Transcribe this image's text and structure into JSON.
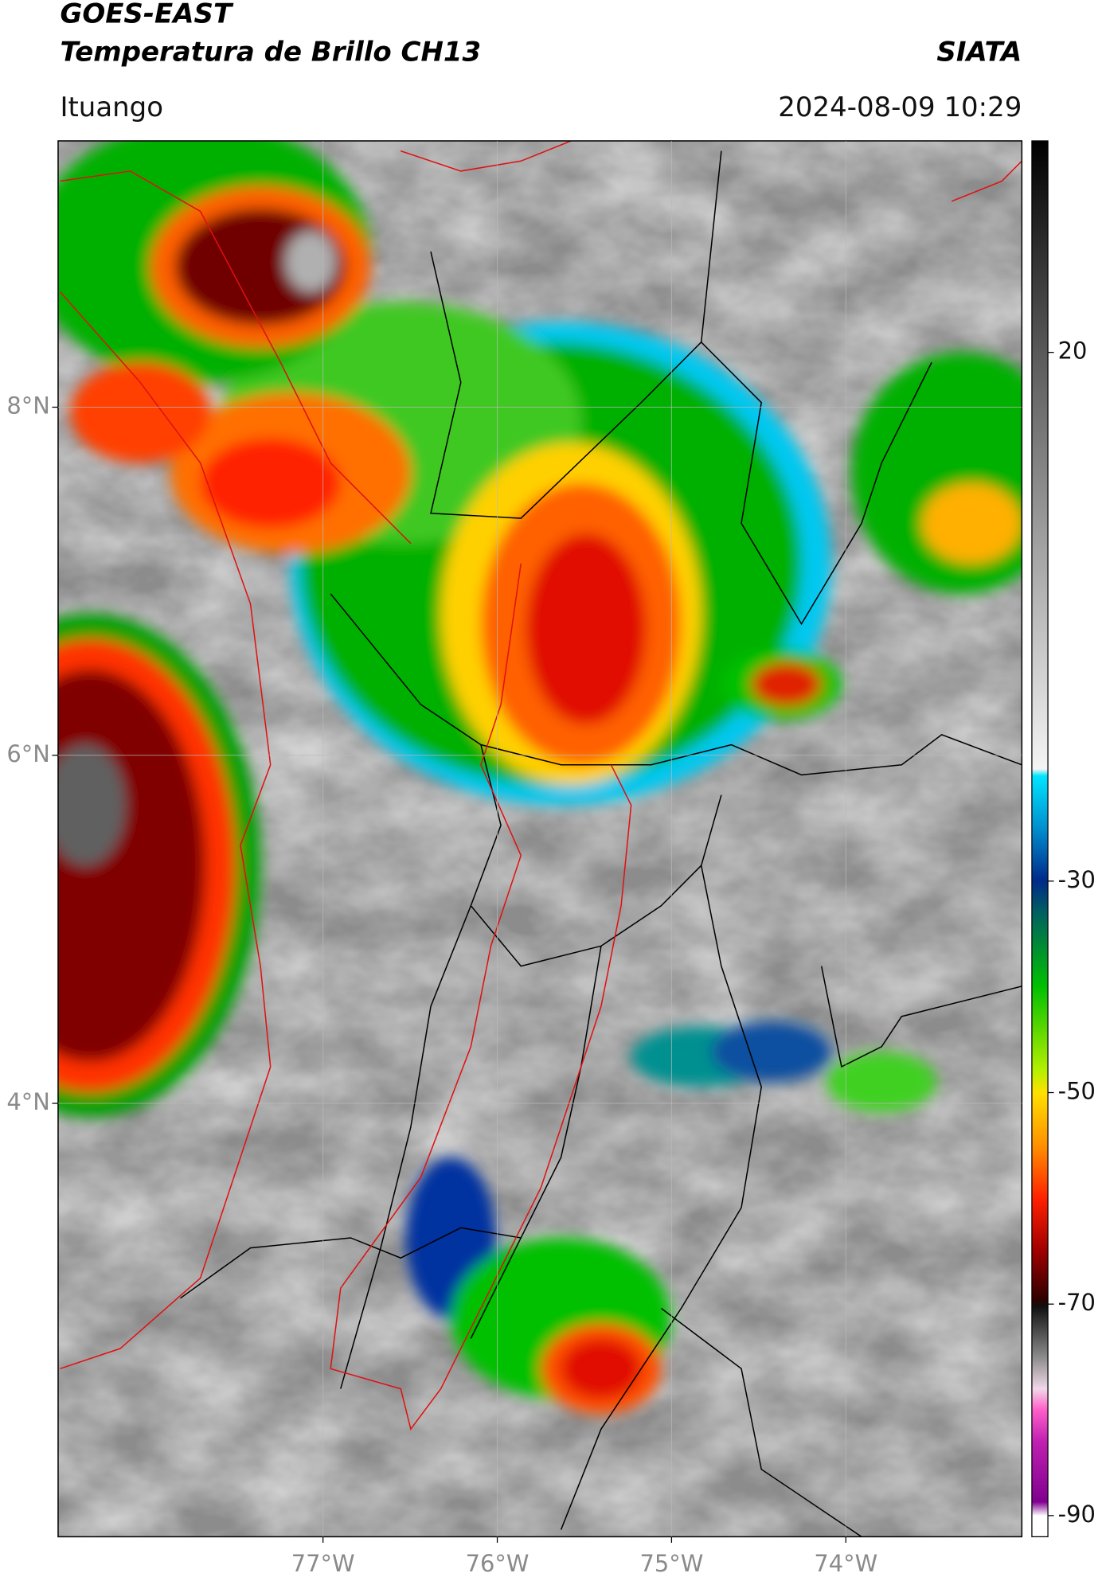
{
  "header": {
    "title": "GOES-EAST",
    "subtitle": "Temperatura de Brillo CH13",
    "source": "SIATA",
    "location": "Ituango",
    "datetime": "2024-08-09 10:29"
  },
  "map": {
    "xlim": [
      -78.52,
      -72.99
    ],
    "ylim": [
      1.51,
      9.53
    ],
    "xticks": [
      {
        "value": -77,
        "label": "77°W"
      },
      {
        "value": -76,
        "label": "76°W"
      },
      {
        "value": -75,
        "label": "75°W"
      },
      {
        "value": -74,
        "label": "74°W"
      }
    ],
    "yticks": [
      {
        "value": 8,
        "label": "8°N"
      },
      {
        "value": 6,
        "label": "6°N"
      },
      {
        "value": 4,
        "label": "4°N"
      }
    ],
    "grid": true
  },
  "colorbar": {
    "lim": [
      -92,
      40
    ],
    "ticks": [
      20,
      -30,
      -50,
      -70,
      -90
    ]
  }
}
